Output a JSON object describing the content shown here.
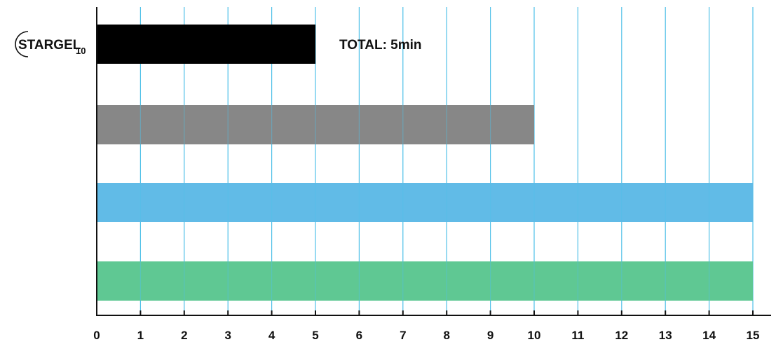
{
  "chart_data": {
    "type": "bar",
    "orientation": "horizontal",
    "xlim": [
      0,
      15
    ],
    "x_ticks": [
      0,
      1,
      2,
      3,
      4,
      5,
      6,
      7,
      8,
      9,
      10,
      11,
      12,
      13,
      14,
      15
    ],
    "grid": true,
    "categories": [
      {
        "brand": "STARGEL",
        "subscript": "10"
      },
      {
        "brand": "",
        "subscript": ""
      },
      {
        "brand": "",
        "subscript": ""
      },
      {
        "brand": "",
        "subscript": ""
      }
    ],
    "values": [
      5,
      10,
      15,
      15
    ],
    "colors": [
      "#000000",
      "#878787",
      "#61bbe7",
      "#5fc893"
    ],
    "annotations": [
      {
        "bar_index": 0,
        "text": "TOTAL: 5min"
      }
    ],
    "grid_color": "#4fc0e8",
    "axis_color": "#111111"
  }
}
